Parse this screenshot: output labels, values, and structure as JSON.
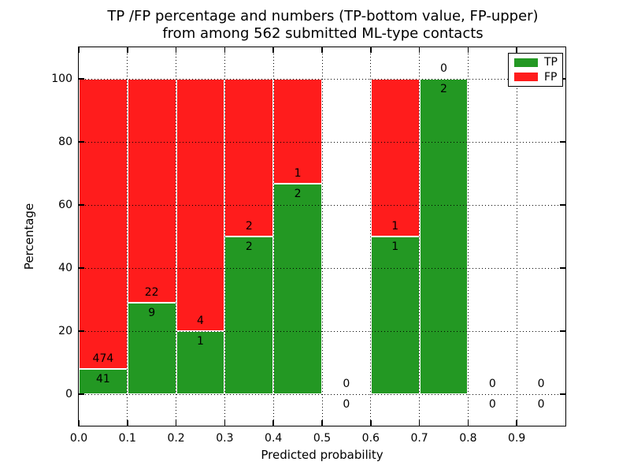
{
  "chart_data": {
    "type": "bar",
    "stacked": true,
    "title_line1": "TP /FP percentage and numbers (TP-bottom value, FP-upper)",
    "title_line2": "from among 562 submitted ML-type contacts",
    "xlabel": "Predicted probability",
    "ylabel": "Percentage",
    "xlim": [
      0.0,
      1.0
    ],
    "ylim": [
      -10,
      110
    ],
    "grid": "dotted",
    "total_contacts": 562,
    "xticks": [
      {
        "value": 0.0,
        "label": "0.0"
      },
      {
        "value": 0.1,
        "label": "0.1"
      },
      {
        "value": 0.2,
        "label": "0.2"
      },
      {
        "value": 0.3,
        "label": "0.3"
      },
      {
        "value": 0.4,
        "label": "0.4"
      },
      {
        "value": 0.5,
        "label": "0.5"
      },
      {
        "value": 0.6,
        "label": "0.6"
      },
      {
        "value": 0.7,
        "label": "0.7"
      },
      {
        "value": 0.8,
        "label": "0.8"
      },
      {
        "value": 0.9,
        "label": "0.9"
      }
    ],
    "yticks": [
      {
        "value": 0,
        "label": "0"
      },
      {
        "value": 20,
        "label": "20"
      },
      {
        "value": 40,
        "label": "40"
      },
      {
        "value": 60,
        "label": "60"
      },
      {
        "value": 80,
        "label": "80"
      },
      {
        "value": 100,
        "label": "100"
      }
    ],
    "bins": [
      {
        "range": [
          0.0,
          0.1
        ],
        "tp": 41,
        "fp": 474,
        "tp_pct": 7.96,
        "fp_pct": 92.04
      },
      {
        "range": [
          0.1,
          0.2
        ],
        "tp": 9,
        "fp": 22,
        "tp_pct": 29.03,
        "fp_pct": 70.97
      },
      {
        "range": [
          0.2,
          0.3
        ],
        "tp": 1,
        "fp": 4,
        "tp_pct": 20.0,
        "fp_pct": 80.0
      },
      {
        "range": [
          0.3,
          0.4
        ],
        "tp": 2,
        "fp": 2,
        "tp_pct": 50.0,
        "fp_pct": 50.0
      },
      {
        "range": [
          0.4,
          0.5
        ],
        "tp": 2,
        "fp": 1,
        "tp_pct": 66.67,
        "fp_pct": 33.33
      },
      {
        "range": [
          0.5,
          0.6
        ],
        "tp": 0,
        "fp": 0,
        "tp_pct": 0,
        "fp_pct": 0
      },
      {
        "range": [
          0.6,
          0.7
        ],
        "tp": 1,
        "fp": 1,
        "tp_pct": 50.0,
        "fp_pct": 50.0
      },
      {
        "range": [
          0.7,
          0.8
        ],
        "tp": 2,
        "fp": 0,
        "tp_pct": 100.0,
        "fp_pct": 0
      },
      {
        "range": [
          0.8,
          0.9
        ],
        "tp": 0,
        "fp": 0,
        "tp_pct": 0,
        "fp_pct": 0
      },
      {
        "range": [
          0.9,
          1.0
        ],
        "tp": 0,
        "fp": 0,
        "tp_pct": 0,
        "fp_pct": 0
      }
    ],
    "legend": {
      "position": "upper right",
      "entries": [
        {
          "label": "TP",
          "color": "#239823"
        },
        {
          "label": "FP",
          "color": "#ff1c1c"
        }
      ]
    },
    "colors": {
      "tp": "#239823",
      "fp": "#ff1c1c",
      "bar_edge": "#ffffff",
      "grid": "#000000",
      "axis": "#000000",
      "background": "#ffffff"
    }
  }
}
